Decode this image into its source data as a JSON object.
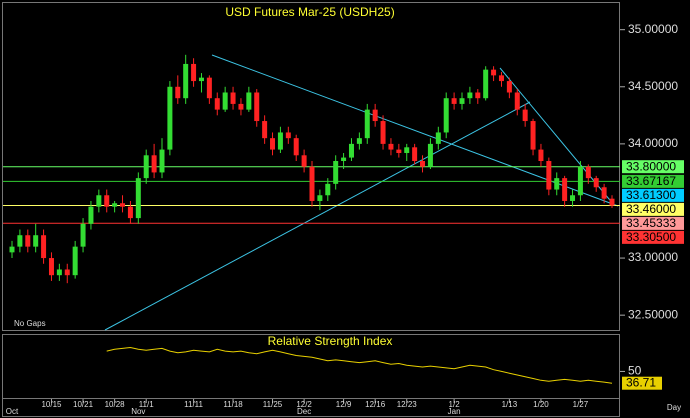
{
  "chart_data": {
    "type": "candlestick",
    "title": "USD Futures Mar-25 (USDH25)",
    "note": "No Gaps",
    "x_unit": "Day",
    "ylim": [
      32.37,
      35.26
    ],
    "yticks": [
      {
        "value": 35,
        "label": "35.00000"
      },
      {
        "value": 34.5,
        "label": "34.50000"
      },
      {
        "value": 34,
        "label": "34.00000"
      },
      {
        "value": 33,
        "label": "33.00000"
      },
      {
        "value": 32.5,
        "label": "32.50000"
      }
    ],
    "up_color": "#33dd33",
    "down_color": "#ff2222",
    "categories": [
      null,
      null,
      null,
      null,
      null,
      "10/15",
      null,
      null,
      null,
      "10/21",
      null,
      null,
      null,
      "10/28",
      null,
      null,
      null,
      "11/1",
      null,
      null,
      null,
      null,
      null,
      "11/11",
      null,
      null,
      null,
      null,
      "11/18",
      null,
      null,
      null,
      null,
      "11/25",
      null,
      null,
      null,
      "12/2",
      null,
      null,
      null,
      null,
      "12/9",
      null,
      null,
      null,
      "12/16",
      null,
      null,
      null,
      "12/23",
      null,
      null,
      null,
      null,
      null,
      "1/2",
      null,
      null,
      null,
      null,
      null,
      null,
      "1/13",
      null,
      null,
      null,
      "1/20",
      null,
      null,
      null,
      null,
      "1/27",
      null,
      null,
      null,
      null
    ],
    "months": [
      "Oct",
      null,
      null,
      null,
      null,
      null,
      null,
      null,
      null,
      null,
      null,
      null,
      null,
      null,
      null,
      null,
      "Nov",
      null,
      null,
      null,
      null,
      null,
      null,
      null,
      null,
      null,
      null,
      null,
      null,
      null,
      null,
      null,
      null,
      null,
      null,
      null,
      null,
      "Dec",
      null,
      null,
      null,
      null,
      null,
      null,
      null,
      null,
      null,
      null,
      null,
      null,
      null,
      null,
      null,
      null,
      null,
      null,
      "Jan",
      null,
      null,
      null,
      null,
      null,
      null,
      null,
      null,
      null,
      null,
      null,
      null,
      null,
      null,
      null,
      null,
      null,
      null,
      null,
      null
    ],
    "ohlc": [
      [
        33.05,
        33.15,
        33.0,
        33.1
      ],
      [
        33.1,
        33.25,
        33.05,
        33.2
      ],
      [
        33.2,
        33.25,
        33.05,
        33.1
      ],
      [
        33.1,
        33.3,
        33.05,
        33.2
      ],
      [
        33.2,
        33.25,
        32.95,
        33.0
      ],
      [
        33.0,
        33.05,
        32.8,
        32.85
      ],
      [
        32.85,
        32.95,
        32.8,
        32.9
      ],
      [
        32.9,
        32.95,
        32.78,
        32.85
      ],
      [
        32.85,
        33.15,
        32.82,
        33.1
      ],
      [
        33.1,
        33.35,
        33.05,
        33.3
      ],
      [
        33.3,
        33.5,
        33.25,
        33.45
      ],
      [
        33.45,
        33.6,
        33.4,
        33.55
      ],
      [
        33.55,
        33.6,
        33.4,
        33.45
      ],
      [
        33.45,
        33.5,
        33.4,
        33.48
      ],
      [
        33.48,
        33.55,
        33.4,
        33.45
      ],
      [
        33.45,
        33.5,
        33.3,
        33.35
      ],
      [
        33.35,
        33.75,
        33.3,
        33.7
      ],
      [
        33.7,
        33.95,
        33.65,
        33.9
      ],
      [
        33.9,
        34.0,
        33.7,
        33.75
      ],
      [
        33.75,
        34.05,
        33.7,
        33.95
      ],
      [
        33.95,
        34.55,
        33.9,
        34.5
      ],
      [
        34.5,
        34.6,
        34.35,
        34.4
      ],
      [
        34.4,
        34.78,
        34.35,
        34.7
      ],
      [
        34.7,
        34.75,
        34.5,
        34.55
      ],
      [
        34.55,
        34.62,
        34.45,
        34.58
      ],
      [
        34.58,
        34.6,
        34.35,
        34.4
      ],
      [
        34.4,
        34.45,
        34.25,
        34.3
      ],
      [
        34.3,
        34.5,
        34.28,
        34.45
      ],
      [
        34.45,
        34.5,
        34.3,
        34.35
      ],
      [
        34.35,
        34.4,
        34.25,
        34.3
      ],
      [
        34.3,
        34.5,
        34.28,
        34.45
      ],
      [
        34.45,
        34.48,
        34.15,
        34.2
      ],
      [
        34.2,
        34.25,
        34.0,
        34.05
      ],
      [
        34.05,
        34.1,
        33.9,
        33.95
      ],
      [
        33.95,
        34.15,
        33.92,
        34.1
      ],
      [
        34.1,
        34.15,
        34.0,
        34.05
      ],
      [
        34.05,
        34.08,
        33.85,
        33.9
      ],
      [
        33.9,
        33.95,
        33.75,
        33.8
      ],
      [
        33.8,
        33.85,
        33.45,
        33.5
      ],
      [
        33.5,
        33.6,
        33.42,
        33.55
      ],
      [
        33.55,
        33.7,
        33.5,
        33.65
      ],
      [
        33.65,
        33.9,
        33.6,
        33.85
      ],
      [
        33.85,
        33.92,
        33.78,
        33.88
      ],
      [
        33.88,
        34.05,
        33.85,
        34.0
      ],
      [
        34.0,
        34.1,
        33.95,
        34.05
      ],
      [
        34.05,
        34.35,
        34.0,
        34.3
      ],
      [
        34.3,
        34.35,
        34.15,
        34.2
      ],
      [
        34.2,
        34.25,
        33.95,
        34.0
      ],
      [
        34.0,
        34.05,
        33.9,
        33.95
      ],
      [
        33.95,
        34.0,
        33.88,
        33.92
      ],
      [
        33.92,
        34.0,
        33.85,
        33.97
      ],
      [
        33.97,
        34.0,
        33.82,
        33.85
      ],
      [
        33.85,
        33.9,
        33.75,
        33.8
      ],
      [
        33.8,
        34.05,
        33.78,
        34.0
      ],
      [
        34.0,
        34.15,
        33.95,
        34.1
      ],
      [
        34.1,
        34.45,
        34.05,
        34.4
      ],
      [
        34.4,
        34.45,
        34.3,
        34.35
      ],
      [
        34.35,
        34.45,
        34.3,
        34.4
      ],
      [
        34.4,
        34.5,
        34.35,
        34.45
      ],
      [
        34.45,
        34.48,
        34.35,
        34.4
      ],
      [
        34.4,
        34.68,
        34.38,
        34.65
      ],
      [
        34.65,
        34.68,
        34.55,
        34.6
      ],
      [
        34.6,
        34.63,
        34.5,
        34.55
      ],
      [
        34.55,
        34.58,
        34.4,
        34.45
      ],
      [
        34.45,
        34.48,
        34.25,
        34.3
      ],
      [
        34.3,
        34.35,
        34.15,
        34.2
      ],
      [
        34.2,
        34.22,
        33.9,
        33.95
      ],
      [
        33.95,
        34.0,
        33.8,
        33.85
      ],
      [
        33.85,
        33.88,
        33.55,
        33.6
      ],
      [
        33.6,
        33.75,
        33.55,
        33.7
      ],
      [
        33.7,
        33.72,
        33.45,
        33.5
      ],
      [
        33.5,
        33.6,
        33.45,
        33.55
      ],
      [
        33.55,
        33.85,
        33.5,
        33.8
      ],
      [
        33.8,
        33.82,
        33.65,
        33.7
      ],
      [
        33.7,
        33.72,
        33.58,
        33.62
      ],
      [
        33.62,
        33.65,
        33.48,
        33.52
      ],
      [
        33.52,
        33.55,
        33.44,
        33.46
      ]
    ],
    "levels": [
      {
        "value": 33.8,
        "label": "33.80000",
        "color": "#66ff66",
        "line": true
      },
      {
        "value": 33.67167,
        "label": "33.67167",
        "color": "#33cc33",
        "line": true
      },
      {
        "value": 33.613,
        "label": "33.61300",
        "color": "#00ccff",
        "line": false
      },
      {
        "value": 33.46,
        "label": "33.46000",
        "color": "#ffff66",
        "line": true
      },
      {
        "value": 33.45333,
        "label": "33.45333",
        "color": "#ff9999",
        "line": false
      },
      {
        "value": 33.305,
        "label": "33.30500",
        "color": "#ff3333",
        "line": true
      }
    ],
    "rsi": {
      "title": "Relative Strength Index",
      "color": "#e8d000",
      "ylim": [
        20,
        90
      ],
      "yticks": [
        50
      ],
      "values": [
        73,
        75,
        76,
        77,
        75,
        74,
        75,
        76,
        73,
        71,
        72,
        74,
        73,
        72,
        75,
        73,
        72,
        73,
        71,
        70,
        72,
        74,
        72,
        70,
        68,
        67,
        66,
        64,
        62,
        63,
        62,
        61,
        60,
        61,
        62,
        60,
        58,
        59,
        57,
        56,
        55,
        56,
        55,
        54,
        53,
        55,
        57,
        56,
        55,
        52,
        50,
        48,
        46,
        44,
        42,
        40,
        39,
        40,
        41,
        40,
        39,
        40,
        39,
        38,
        36.71
      ]
    }
  }
}
